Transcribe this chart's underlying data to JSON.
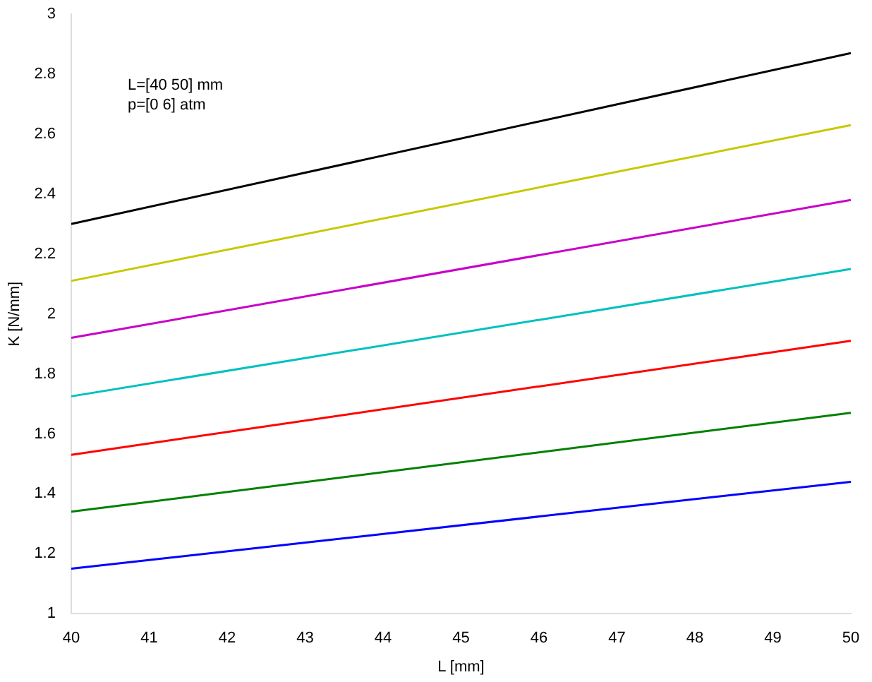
{
  "chart_data": {
    "type": "line",
    "xlabel": "L [mm]",
    "ylabel": "K [N/mm]",
    "annotations": [
      "L=[40 50] mm",
      "p=[0 6] atm"
    ],
    "x": [
      40,
      50
    ],
    "xlim": [
      40,
      50
    ],
    "xticks": [
      40,
      41,
      42,
      43,
      44,
      45,
      46,
      47,
      48,
      49,
      50
    ],
    "ylim": [
      1,
      3
    ],
    "yticks": [
      1,
      1.2,
      1.4,
      1.6,
      1.8,
      2,
      2.2,
      2.4,
      2.6,
      2.8,
      3
    ],
    "grid": false,
    "legend": false,
    "marker": "none",
    "line_style": "solid",
    "series": [
      {
        "color": "#000000",
        "values": [
          2.3,
          2.87
        ]
      },
      {
        "color": "#c8c800",
        "values": [
          2.11,
          2.63
        ]
      },
      {
        "color": "#c800c8",
        "values": [
          1.92,
          2.38
        ]
      },
      {
        "color": "#00c0c0",
        "values": [
          1.725,
          2.15
        ]
      },
      {
        "color": "#ff0000",
        "values": [
          1.53,
          1.91
        ]
      },
      {
        "color": "#008000",
        "values": [
          1.34,
          1.67
        ]
      },
      {
        "color": "#0000ff",
        "values": [
          1.15,
          1.44
        ]
      }
    ]
  }
}
